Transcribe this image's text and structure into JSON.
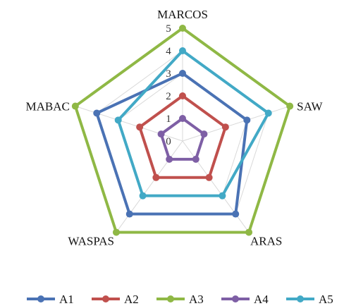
{
  "chart_data": {
    "type": "radar",
    "axes": [
      "MARCOS",
      "SAW",
      "ARAS",
      "WASPAS",
      "MABAC"
    ],
    "rmin": 0,
    "rmax": 5,
    "ticks": [
      "0",
      "1",
      "2",
      "3",
      "4",
      "5"
    ],
    "grid": true,
    "legend_position": "bottom",
    "series": [
      {
        "name": "A1",
        "color": "#4a72b4",
        "values": [
          3,
          3,
          4,
          4,
          4
        ]
      },
      {
        "name": "A2",
        "color": "#c0504d",
        "values": [
          2,
          2,
          2,
          2,
          2
        ]
      },
      {
        "name": "A3",
        "color": "#8fb845",
        "values": [
          5,
          5,
          5,
          5,
          5
        ]
      },
      {
        "name": "A4",
        "color": "#7e5fa5",
        "values": [
          1,
          1,
          1,
          1,
          1
        ]
      },
      {
        "name": "A5",
        "color": "#42a9c6",
        "values": [
          4,
          4,
          3,
          3,
          3
        ]
      }
    ]
  }
}
